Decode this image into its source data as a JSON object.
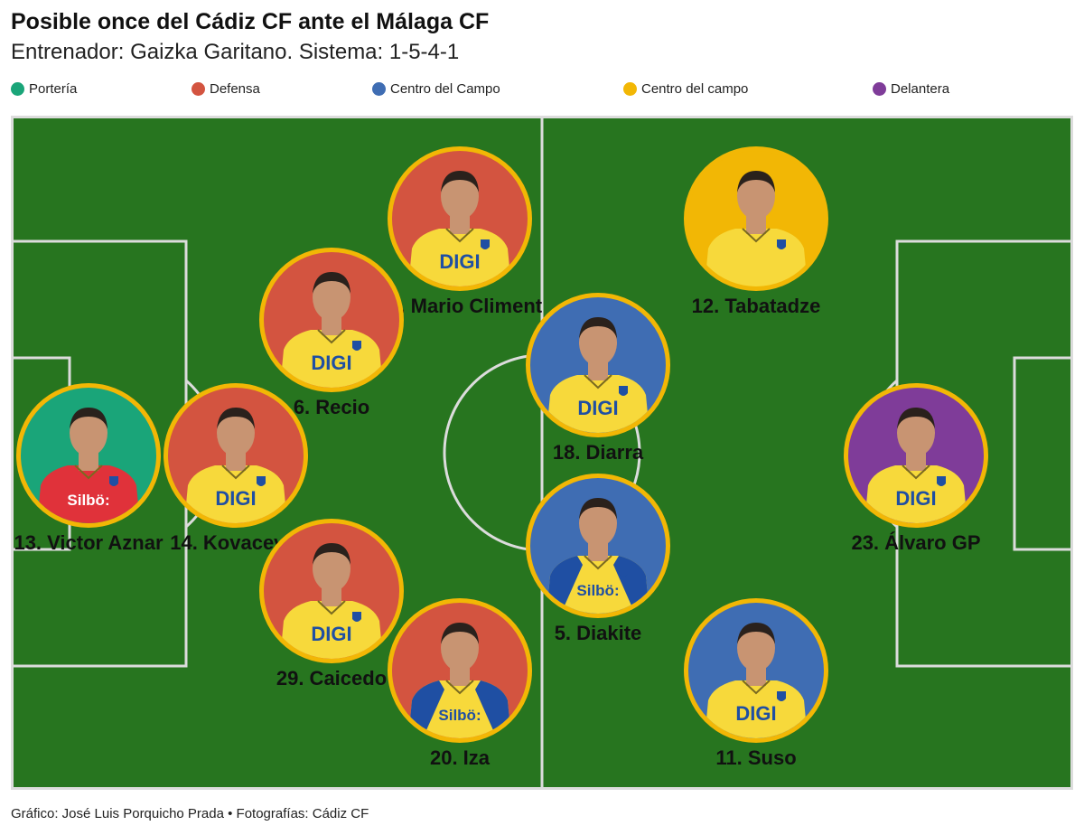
{
  "header": {
    "title": "Posible once del Cádiz CF ante el Málaga CF",
    "subtitle": "Entrenador: Gaizka Garitano. Sistema: 1-5-4-1"
  },
  "legend": [
    {
      "label": "Portería",
      "color": "#1aa579"
    },
    {
      "label": "Defensa",
      "color": "#d35440"
    },
    {
      "label": "Centro del Campo",
      "color": "#3f6db3"
    },
    {
      "label": "Centro del campo",
      "color": "#f2b705"
    },
    {
      "label": "Delantera",
      "color": "#7f3c99"
    }
  ],
  "players": [
    {
      "name": "21. Mario Climent",
      "color": "#d35440",
      "kit": "yellow",
      "sponsor": "DIGI"
    },
    {
      "name": "12. Tabatadze",
      "color": "#f2b705",
      "kit": "yellow",
      "sponsor": ""
    },
    {
      "name": "6. Recio",
      "color": "#d35440",
      "kit": "yellow",
      "sponsor": "DIGI"
    },
    {
      "name": "18. Diarra",
      "color": "#3f6db3",
      "kit": "yellow",
      "sponsor": "DIGI"
    },
    {
      "name": "13. Victor Aznar",
      "color": "#1aa579",
      "kit": "red",
      "sponsor": "Silbö:"
    },
    {
      "name": "14. Kovacevic",
      "color": "#d35440",
      "kit": "yellow",
      "sponsor": "DIGI"
    },
    {
      "name": "23. Álvaro GP",
      "color": "#7f3c99",
      "kit": "yellow",
      "sponsor": "DIGI"
    },
    {
      "name": "5. Diakite",
      "color": "#3f6db3",
      "kit": "blue-yellow",
      "sponsor": "Silbö:"
    },
    {
      "name": "29. Caicedo",
      "color": "#d35440",
      "kit": "yellow",
      "sponsor": "DIGI"
    },
    {
      "name": "20. Iza",
      "color": "#d35440",
      "kit": "blue-yellow",
      "sponsor": "Silbö:"
    },
    {
      "name": "11. Suso",
      "color": "#3f6db3",
      "kit": "yellow",
      "sponsor": "DIGI"
    }
  ],
  "footer": {
    "credit": "Gráfico: José Luis Porquicho Prada • Fotografías: Cádiz CF"
  }
}
